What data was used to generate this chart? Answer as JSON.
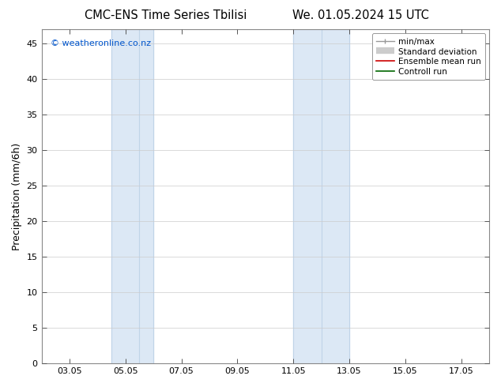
{
  "title_left": "CMC-ENS Time Series Tbilisi",
  "title_right": "We. 01.05.2024 15 UTC",
  "ylabel": "Precipitation (mm/6h)",
  "ylim": [
    0,
    47
  ],
  "yticks": [
    0,
    5,
    10,
    15,
    20,
    25,
    30,
    35,
    40,
    45
  ],
  "xtick_labels": [
    "03.05",
    "05.05",
    "07.05",
    "09.05",
    "11.05",
    "13.05",
    "15.05",
    "17.05"
  ],
  "xtick_positions": [
    3,
    5,
    7,
    9,
    11,
    13,
    15,
    17
  ],
  "xmin": 2.0,
  "xmax": 18.0,
  "shaded_region1": [
    4.5,
    6.0
  ],
  "shaded_region2": [
    11.0,
    13.0
  ],
  "shade_color": "#dce8f5",
  "shade_line_color": "#c0d4e8",
  "shade_inner_lines": [
    5.5,
    12.0
  ],
  "background_color": "#ffffff",
  "plot_bg_color": "#ffffff",
  "grid_color": "#cccccc",
  "spine_color": "#888888",
  "watermark": "© weatheronline.co.nz",
  "watermark_color": "#0055cc",
  "title_fontsize": 10.5,
  "ylabel_fontsize": 9,
  "tick_fontsize": 8,
  "legend_fontsize": 7.5,
  "watermark_fontsize": 8
}
